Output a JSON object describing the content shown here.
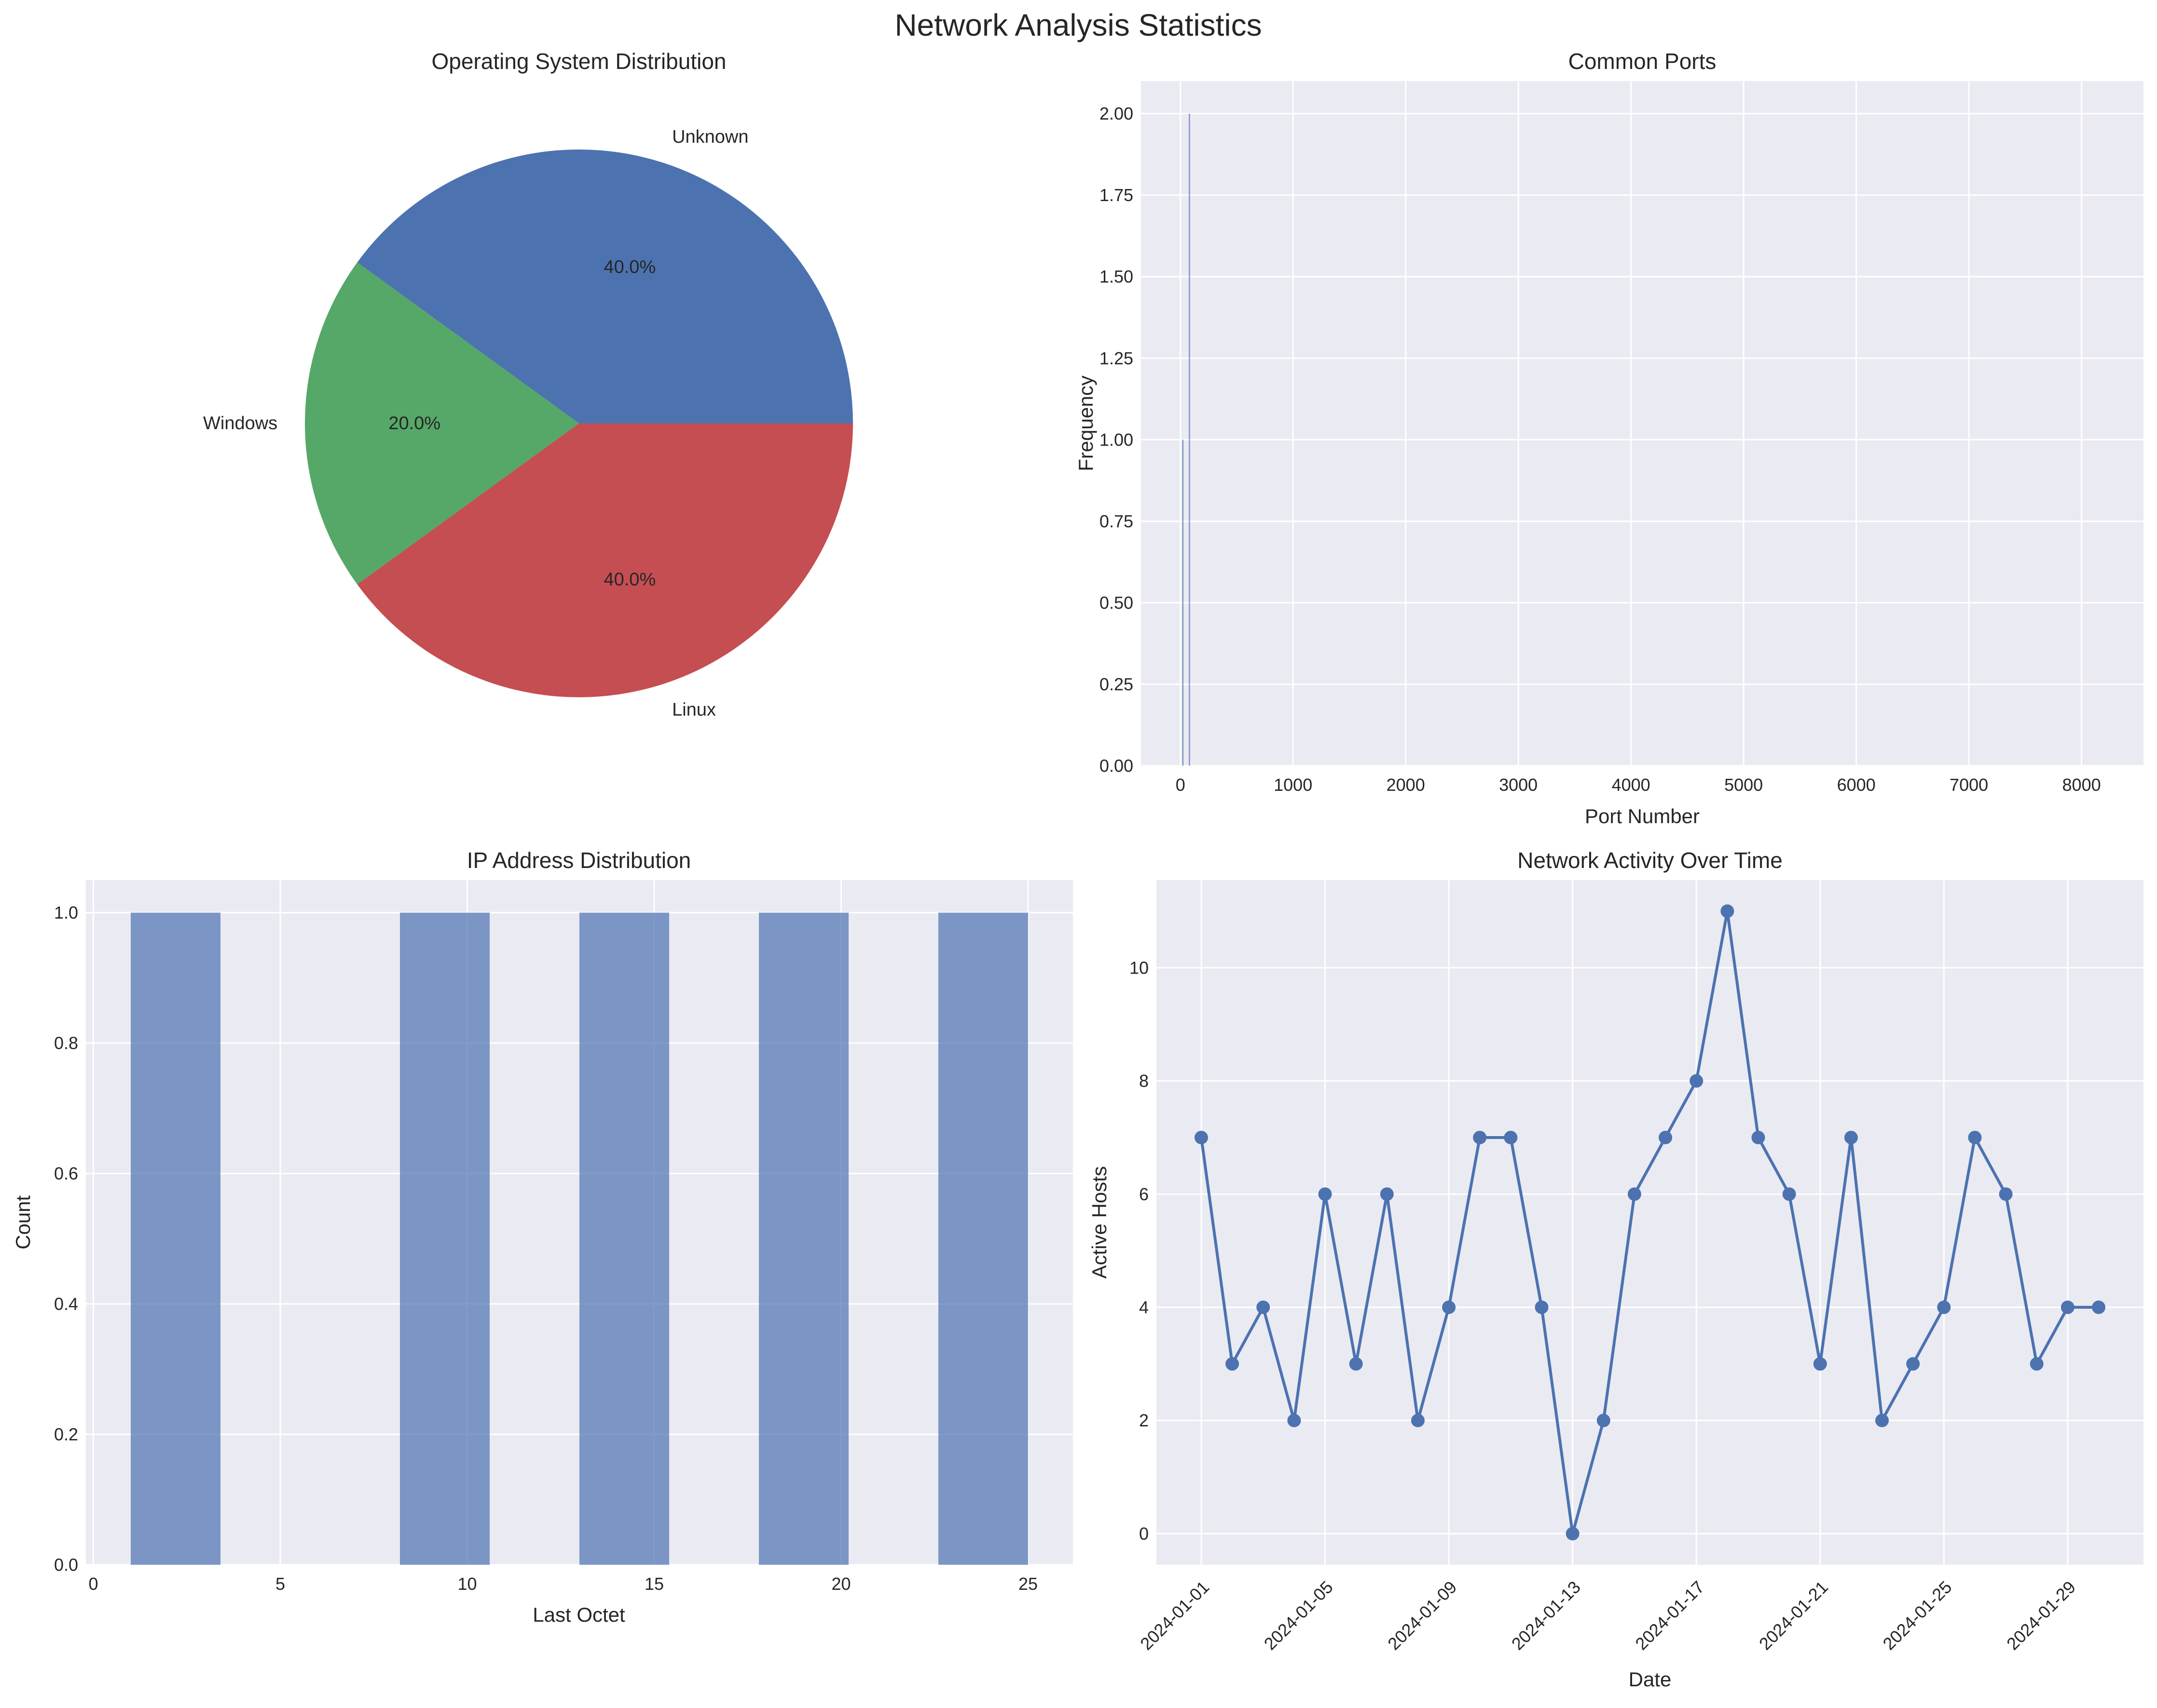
{
  "figure": {
    "title": "Network Analysis Statistics",
    "colors": {
      "background": "#eaeaf2",
      "grid": "#ffffff",
      "blue": "#4c72b0",
      "green": "#55a868",
      "red": "#c44e52",
      "text": "#262626"
    }
  },
  "chart_data": [
    {
      "type": "pie",
      "title": "Operating System Distribution",
      "slices": [
        {
          "label": "Unknown",
          "value": 40.0,
          "pct_label": "40.0%",
          "color": "#4c72b0"
        },
        {
          "label": "Windows",
          "value": 20.0,
          "pct_label": "20.0%",
          "color": "#55a868"
        },
        {
          "label": "Linux",
          "value": 40.0,
          "pct_label": "40.0%",
          "color": "#c44e52"
        }
      ]
    },
    {
      "type": "bar",
      "title": "Common Ports",
      "xlabel": "Port Number",
      "ylabel": "Frequency",
      "xlim": [
        -350,
        8550
      ],
      "ylim": [
        0,
        2.1
      ],
      "xticks": [
        0,
        1000,
        2000,
        3000,
        4000,
        5000,
        6000,
        7000,
        8000
      ],
      "yticks": [
        0,
        0.25,
        0.5,
        0.75,
        1.0,
        1.25,
        1.5,
        1.75,
        2.0
      ],
      "ytick_format": 2,
      "grid": true,
      "bars": [
        {
          "x": 22,
          "value": 1
        },
        {
          "x": 80,
          "value": 2
        }
      ]
    },
    {
      "type": "bar",
      "title": "IP Address Distribution",
      "xlabel": "Last Octet",
      "ylabel": "Count",
      "xlim": [
        -0.2,
        26.2
      ],
      "ylim": [
        0,
        1.05
      ],
      "xticks": [
        0,
        5,
        10,
        15,
        20,
        25
      ],
      "yticks": [
        0,
        0.2,
        0.4,
        0.6,
        0.8,
        1.0
      ],
      "ytick_format": 1,
      "grid": true,
      "bins": [
        {
          "x0": 1.0,
          "x1": 3.4,
          "count": 1
        },
        {
          "x0": 8.2,
          "x1": 10.6,
          "count": 1
        },
        {
          "x0": 13.0,
          "x1": 15.4,
          "count": 1
        },
        {
          "x0": 17.8,
          "x1": 20.2,
          "count": 1
        },
        {
          "x0": 22.6,
          "x1": 25.0,
          "count": 1
        }
      ]
    },
    {
      "type": "line",
      "title": "Network Activity Over Time",
      "xlabel": "Date",
      "ylabel": "Active Hosts",
      "ylim": [
        -0.55,
        11.55
      ],
      "yticks": [
        0,
        2,
        4,
        6,
        8,
        10
      ],
      "grid": true,
      "xticks": [
        "2024-01-01",
        "2024-01-05",
        "2024-01-09",
        "2024-01-13",
        "2024-01-17",
        "2024-01-21",
        "2024-01-25",
        "2024-01-29"
      ],
      "x": [
        "2024-01-01",
        "2024-01-02",
        "2024-01-03",
        "2024-01-04",
        "2024-01-05",
        "2024-01-06",
        "2024-01-07",
        "2024-01-08",
        "2024-01-09",
        "2024-01-10",
        "2024-01-11",
        "2024-01-12",
        "2024-01-13",
        "2024-01-14",
        "2024-01-15",
        "2024-01-16",
        "2024-01-17",
        "2024-01-18",
        "2024-01-19",
        "2024-01-20",
        "2024-01-21",
        "2024-01-22",
        "2024-01-23",
        "2024-01-24",
        "2024-01-25",
        "2024-01-26",
        "2024-01-27",
        "2024-01-28",
        "2024-01-29",
        "2024-01-30"
      ],
      "y": [
        7,
        3,
        4,
        2,
        6,
        3,
        6,
        2,
        4,
        7,
        7,
        4,
        0,
        2,
        6,
        7,
        8,
        11,
        7,
        6,
        3,
        7,
        2,
        3,
        4,
        7,
        6,
        3,
        4,
        4
      ]
    }
  ]
}
